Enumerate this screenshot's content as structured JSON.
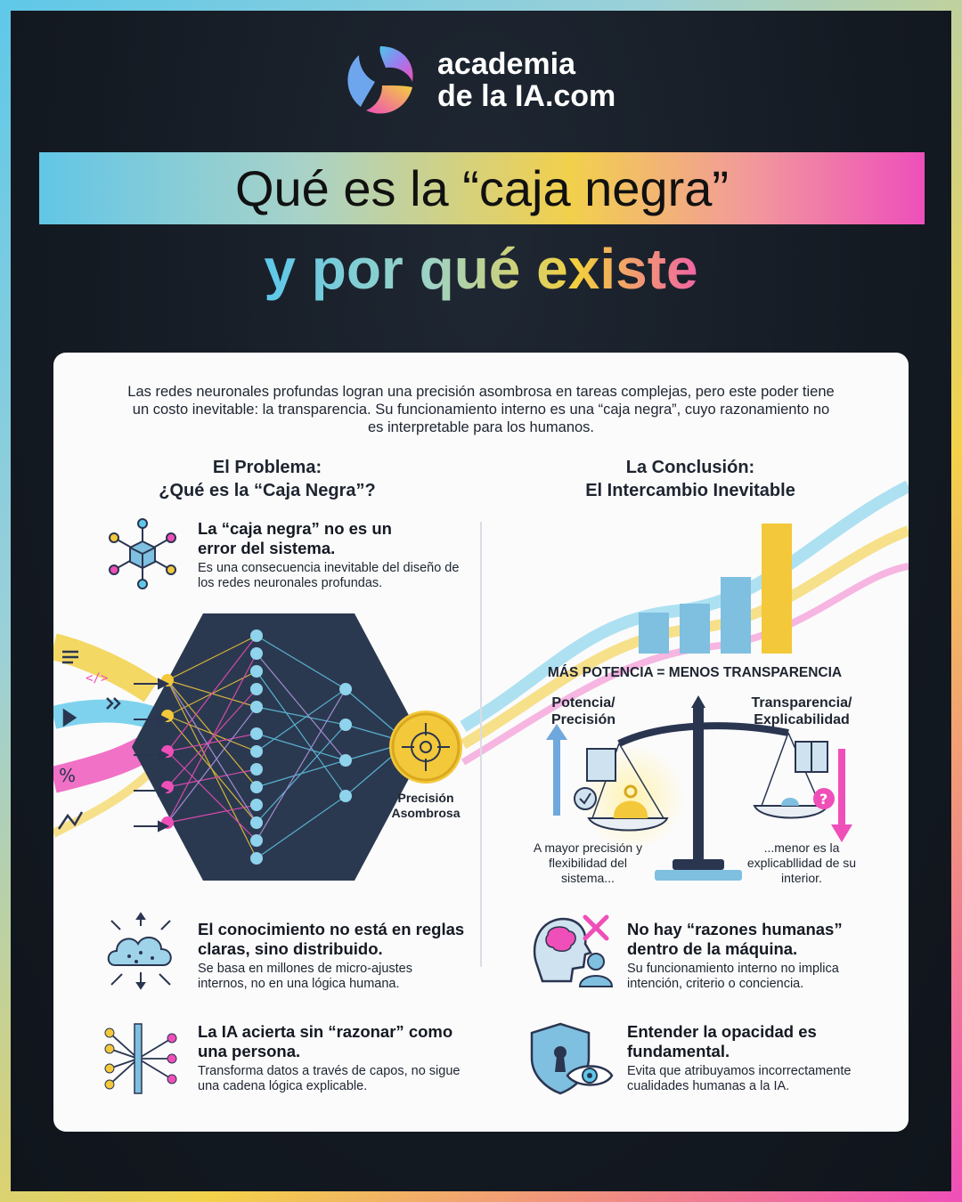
{
  "brand": {
    "line1": "academia",
    "line2_prefix": "de la ",
    "line2_bold": "IA",
    "line2_suffix": ".com"
  },
  "title": "Qué es la “caja negra”",
  "subtitle": "y por qué existe",
  "intro": "Las redes neuronales profundas logran una precisión asombrosa en tareas complejas, pero este poder tiene un costo inevitable: la transparencia. Su funcionamiento interno es una “caja negra”, cuyo razonamiento no es interpretable para los humanos.",
  "left": {
    "heading_1": "El Problema:",
    "heading_2": "¿Qué es la “Caja Negra”?",
    "block1_title": "La “caja negra” no es un error del sistema.",
    "block1_desc": "Es una consecuencia inevitable del diseño de los redes neuronales profundas.",
    "precision_label": "Precisión Asombrosa",
    "block2_title": "El conocimiento no está en reglas claras, sino distribuido.",
    "block2_desc": "Se basa en millones de micro-ajustes internos, no en una lógica humana.",
    "block3_title": "La IA acierta sin “razonar” como una persona.",
    "block3_desc": "Transforma datos a través de capos, no sigue una cadena lógica explicable."
  },
  "right": {
    "heading_1": "La Conclusión:",
    "heading_2": "El Intercambio Inevitable",
    "tradeoff": "MÁS POTENCIA = MENOS TRANSPARENCIA",
    "potencia_label": "Potencia/ Precisión",
    "transparencia_label": "Transparencia/ Explicabilidad",
    "left_caption": "A mayor precisión y flexibilidad del sistema...",
    "right_caption": "...menor es la explicabllidad de su interior.",
    "block1_title": "No hay “razones humanas” dentro de la máquina.",
    "block1_desc": "Su funcionamiento interno no implica intención, criterio o conciencia.",
    "block2_title": "Entender la opacidad es fundamental.",
    "block2_desc": "Evita que atribuyamos incorrectamente cualidades humanas a la IA."
  },
  "colors": {
    "cyan": "#5fc8e8",
    "yellow": "#f3c83a",
    "pink": "#ef4fb8",
    "navy": "#2a3550",
    "bar": "#7fbfe0"
  },
  "icons": [
    "cube-network-icon",
    "neural-network-icon",
    "target-icon",
    "bar-chart-icon",
    "balance-scale-icon",
    "cloud-network-icon",
    "ai-layers-icon",
    "brain-head-icon",
    "shield-eye-icon"
  ]
}
